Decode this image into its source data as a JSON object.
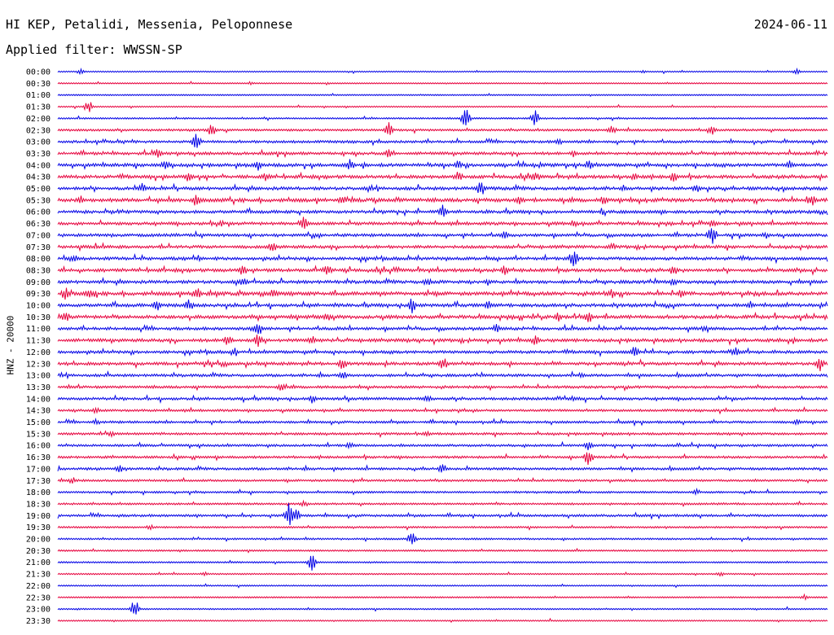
{
  "header": {
    "station": "HI KEP, Petalidi, Messenia, Peloponnese",
    "date": "2024-06-11",
    "filter": "Applied filter: WWSSN-SP"
  },
  "axis": {
    "y_label": "HNZ - 20000"
  },
  "colors": {
    "even_trace": "#0000e6",
    "odd_trace": "#e6003c",
    "background": "#ffffff",
    "text": "#000000"
  },
  "chart_data": {
    "type": "line",
    "title": "",
    "xlabel": "",
    "ylabel": "HNZ - 20000",
    "grid": false,
    "rows": [
      {
        "time": "00:00",
        "activity": 0.05,
        "events": [
          [
            0.03,
            0.5
          ],
          [
            0.76,
            0.3
          ],
          [
            0.96,
            0.5
          ]
        ]
      },
      {
        "time": "00:30",
        "activity": 0.05,
        "events": [
          [
            0.25,
            0.4
          ],
          [
            0.35,
            0.3
          ]
        ]
      },
      {
        "time": "01:00",
        "activity": 0.05,
        "events": []
      },
      {
        "time": "01:30",
        "activity": 0.08,
        "events": [
          [
            0.04,
            1.2
          ]
        ]
      },
      {
        "time": "02:00",
        "activity": 0.15,
        "events": [
          [
            0.53,
            2.0
          ],
          [
            0.62,
            1.6
          ]
        ]
      },
      {
        "time": "02:30",
        "activity": 0.3,
        "events": [
          [
            0.2,
            1.2
          ],
          [
            0.43,
            1.4
          ],
          [
            0.72,
            0.9
          ],
          [
            0.85,
            1.0
          ]
        ]
      },
      {
        "time": "03:00",
        "activity": 0.4,
        "events": [
          [
            0.18,
            1.6
          ],
          [
            0.65,
            0.8
          ]
        ]
      },
      {
        "time": "03:30",
        "activity": 0.5,
        "events": [
          [
            0.13,
            1.0
          ],
          [
            0.43,
            0.9
          ],
          [
            0.67,
            0.8
          ]
        ]
      },
      {
        "time": "04:00",
        "activity": 0.6,
        "events": [
          [
            0.14,
            1.2
          ],
          [
            0.26,
            1.0
          ],
          [
            0.38,
            1.2
          ],
          [
            0.52,
            1.0
          ],
          [
            0.69,
            1.0
          ],
          [
            0.95,
            1.0
          ]
        ]
      },
      {
        "time": "04:30",
        "activity": 0.6,
        "events": [
          [
            0.17,
            1.0
          ],
          [
            0.27,
            0.9
          ],
          [
            0.52,
            1.0
          ],
          [
            0.62,
            1.0
          ],
          [
            0.75,
            0.9
          ],
          [
            0.8,
            1.1
          ]
        ]
      },
      {
        "time": "05:00",
        "activity": 0.6,
        "events": [
          [
            0.11,
            1.0
          ],
          [
            0.55,
            1.6
          ],
          [
            0.83,
            0.8
          ]
        ]
      },
      {
        "time": "05:30",
        "activity": 0.7,
        "events": [
          [
            0.03,
            0.9
          ],
          [
            0.18,
            1.3
          ],
          [
            0.37,
            1.0
          ],
          [
            0.6,
            0.9
          ],
          [
            0.71,
            1.0
          ],
          [
            0.98,
            1.3
          ]
        ]
      },
      {
        "time": "06:00",
        "activity": 0.55,
        "events": [
          [
            0.5,
            1.5
          ]
        ]
      },
      {
        "time": "06:30",
        "activity": 0.55,
        "events": [
          [
            0.32,
            1.5
          ],
          [
            0.67,
            0.8
          ],
          [
            0.85,
            0.7
          ]
        ]
      },
      {
        "time": "07:00",
        "activity": 0.5,
        "events": [
          [
            0.58,
            0.9
          ],
          [
            0.85,
            2.0
          ],
          [
            0.92,
            0.7
          ]
        ]
      },
      {
        "time": "07:30",
        "activity": 0.55,
        "events": [
          [
            0.28,
            1.2
          ],
          [
            0.72,
            0.8
          ]
        ]
      },
      {
        "time": "08:00",
        "activity": 0.55,
        "events": [
          [
            0.02,
            1.0
          ],
          [
            0.67,
            1.8
          ]
        ]
      },
      {
        "time": "08:30",
        "activity": 0.6,
        "events": [
          [
            0.24,
            1.2
          ],
          [
            0.35,
            1.2
          ],
          [
            0.58,
            1.0
          ],
          [
            0.8,
            1.0
          ]
        ]
      },
      {
        "time": "09:00",
        "activity": 0.6,
        "events": [
          [
            0.24,
            1.2
          ],
          [
            0.48,
            0.9
          ],
          [
            0.8,
            0.8
          ]
        ]
      },
      {
        "time": "09:30",
        "activity": 0.7,
        "events": [
          [
            0.01,
            1.3
          ],
          [
            0.04,
            1.0
          ],
          [
            0.18,
            1.3
          ],
          [
            0.28,
            1.0
          ],
          [
            0.72,
            1.0
          ],
          [
            0.81,
            1.0
          ]
        ]
      },
      {
        "time": "10:00",
        "activity": 0.6,
        "events": [
          [
            0.13,
            1.3
          ],
          [
            0.17,
            1.3
          ],
          [
            0.46,
            1.5
          ],
          [
            0.56,
            1.0
          ],
          [
            0.9,
            0.8
          ]
        ]
      },
      {
        "time": "10:30",
        "activity": 0.65,
        "events": [
          [
            0.01,
            1.2
          ],
          [
            0.35,
            0.9
          ],
          [
            0.65,
            0.9
          ],
          [
            0.69,
            1.1
          ]
        ]
      },
      {
        "time": "11:00",
        "activity": 0.5,
        "events": [
          [
            0.26,
            1.5
          ],
          [
            0.57,
            0.9
          ],
          [
            0.84,
            0.6
          ]
        ]
      },
      {
        "time": "11:30",
        "activity": 0.6,
        "events": [
          [
            0.22,
            1.3
          ],
          [
            0.26,
            1.3
          ],
          [
            0.33,
            0.9
          ],
          [
            0.62,
            1.0
          ]
        ]
      },
      {
        "time": "12:00",
        "activity": 0.5,
        "events": [
          [
            0.23,
            0.9
          ],
          [
            0.75,
            1.2
          ],
          [
            0.88,
            1.2
          ]
        ]
      },
      {
        "time": "12:30",
        "activity": 0.55,
        "events": [
          [
            0.37,
            1.2
          ],
          [
            0.5,
            1.5
          ],
          [
            0.99,
            1.4
          ]
        ]
      },
      {
        "time": "13:00",
        "activity": 0.45,
        "events": [
          [
            0.37,
            0.9
          ],
          [
            0.68,
            0.6
          ]
        ]
      },
      {
        "time": "13:30",
        "activity": 0.4,
        "events": [
          [
            0.29,
            1.0
          ]
        ]
      },
      {
        "time": "14:00",
        "activity": 0.45,
        "events": [
          [
            0.33,
            1.0
          ],
          [
            0.48,
            0.9
          ],
          [
            0.67,
            0.6
          ]
        ]
      },
      {
        "time": "14:30",
        "activity": 0.35,
        "events": [
          [
            0.05,
            0.6
          ]
        ]
      },
      {
        "time": "15:00",
        "activity": 0.35,
        "events": [
          [
            0.05,
            0.6
          ],
          [
            0.96,
            0.6
          ]
        ]
      },
      {
        "time": "15:30",
        "activity": 0.35,
        "events": [
          [
            0.07,
            0.7
          ],
          [
            0.48,
            0.6
          ]
        ]
      },
      {
        "time": "16:00",
        "activity": 0.35,
        "events": [
          [
            0.38,
            0.7
          ],
          [
            0.69,
            1.0
          ]
        ]
      },
      {
        "time": "16:30",
        "activity": 0.35,
        "events": [
          [
            0.69,
            1.8
          ]
        ]
      },
      {
        "time": "17:00",
        "activity": 0.4,
        "events": [
          [
            0.08,
            0.8
          ],
          [
            0.5,
            1.0
          ]
        ]
      },
      {
        "time": "17:30",
        "activity": 0.3,
        "events": [
          [
            0.02,
            0.6
          ]
        ]
      },
      {
        "time": "18:00",
        "activity": 0.25,
        "events": [
          [
            0.83,
            0.6
          ]
        ]
      },
      {
        "time": "18:30",
        "activity": 0.25,
        "events": [
          [
            0.32,
            0.7
          ]
        ]
      },
      {
        "time": "19:00",
        "activity": 0.35,
        "events": [
          [
            0.3,
            2.2
          ],
          [
            0.31,
            1.5
          ]
        ]
      },
      {
        "time": "19:30",
        "activity": 0.2,
        "events": [
          [
            0.12,
            0.5
          ]
        ]
      },
      {
        "time": "20:00",
        "activity": 0.2,
        "events": [
          [
            0.46,
            1.4
          ]
        ]
      },
      {
        "time": "20:30",
        "activity": 0.15,
        "events": []
      },
      {
        "time": "21:00",
        "activity": 0.12,
        "events": [
          [
            0.33,
            1.6
          ]
        ]
      },
      {
        "time": "21:30",
        "activity": 0.12,
        "events": [
          [
            0.19,
            0.5
          ],
          [
            0.86,
            0.5
          ]
        ]
      },
      {
        "time": "22:00",
        "activity": 0.08,
        "events": []
      },
      {
        "time": "22:30",
        "activity": 0.08,
        "events": [
          [
            0.97,
            0.5
          ]
        ]
      },
      {
        "time": "23:00",
        "activity": 0.1,
        "events": [
          [
            0.1,
            1.8
          ]
        ]
      },
      {
        "time": "23:30",
        "activity": 0.1,
        "events": []
      }
    ]
  }
}
